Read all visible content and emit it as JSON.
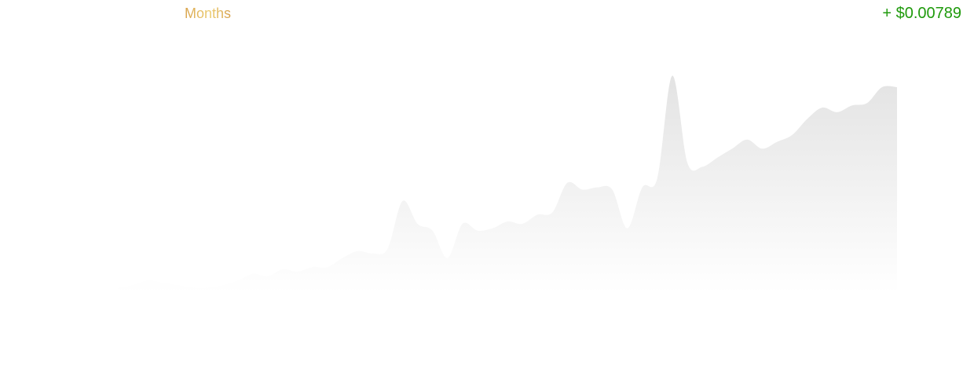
{
  "header": {
    "range_label": "Months",
    "change_label": "+ $0.00789"
  },
  "colors": {
    "range_gradient": [
      "#d8a24a",
      "#eccd72",
      "#d6a04c"
    ],
    "change_positive": "#1f9a0c",
    "area_fill_top": "#e3e3e3",
    "area_fill_bottom": "#ffffff"
  },
  "chart_data": {
    "type": "area",
    "title": "",
    "xlabel": "",
    "ylabel": "",
    "grid": false,
    "legend": "none",
    "ylim": [
      0,
      100
    ],
    "series": [
      {
        "values": [
          2,
          3,
          5,
          4,
          3,
          2,
          2,
          3,
          5,
          8,
          7,
          10,
          9,
          11,
          11,
          15,
          18,
          17,
          19,
          40,
          30,
          27,
          15,
          30,
          27,
          28,
          31,
          30,
          34,
          35,
          48,
          45,
          46,
          45,
          28,
          46,
          50,
          95,
          57,
          55,
          59,
          63,
          67,
          63,
          66,
          69,
          76,
          81,
          79,
          82,
          83,
          90,
          90
        ]
      }
    ]
  }
}
